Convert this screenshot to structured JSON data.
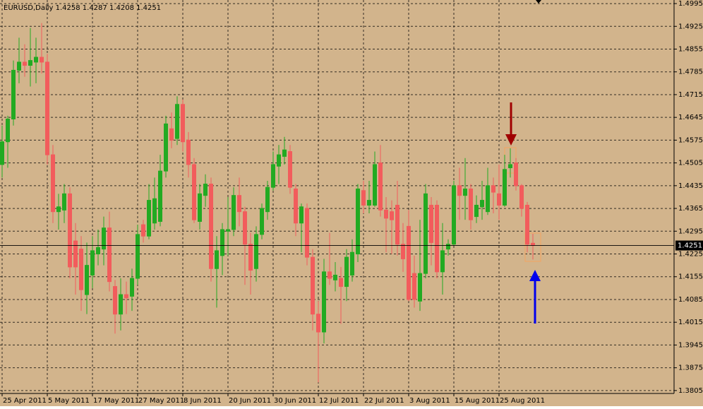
{
  "chart_data": {
    "type": "candlestick",
    "title": "EURUSD,Daily  1.4258 1.4287 1.4208 1.4251",
    "categories": [
      "25 Apr 2011",
      null,
      null,
      null,
      null,
      null,
      null,
      null,
      "5 May 2011",
      null,
      null,
      null,
      null,
      null,
      null,
      null,
      "17 May 2011",
      null,
      null,
      null,
      null,
      null,
      null,
      null,
      "27 May 2011",
      null,
      null,
      null,
      null,
      null,
      null,
      null,
      "8 Jun 2011",
      null,
      null,
      null,
      null,
      null,
      null,
      null,
      "20 Jun 2011",
      null,
      null,
      null,
      null,
      null,
      null,
      null,
      "30 Jun 2011",
      null,
      null,
      null,
      null,
      null,
      null,
      null,
      "12 Jul 2011",
      null,
      null,
      null,
      null,
      null,
      null,
      null,
      "22 Jul 2011",
      null,
      null,
      null,
      null,
      null,
      null,
      null,
      "3 Aug 2011",
      null,
      null,
      null,
      null,
      null,
      null,
      null,
      "15 Aug 2011",
      null,
      null,
      null,
      null,
      null,
      null,
      null,
      "25 Aug 2011",
      null,
      null,
      null,
      null,
      null,
      null
    ],
    "open": [
      1.45,
      1.457,
      1.464,
      1.479,
      1.4815,
      1.4805,
      1.4815,
      1.483,
      1.4815,
      1.453,
      1.4355,
      1.436,
      1.441,
      1.4265,
      1.424,
      1.41,
      1.416,
      1.4225,
      1.424,
      1.4305,
      1.4125,
      1.404,
      1.41,
      1.4095,
      1.415,
      1.4315,
      1.428,
      1.432,
      1.4325,
      1.448,
      1.461,
      1.458,
      1.4685,
      1.4575,
      1.45,
      1.4325,
      1.4405,
      1.444,
      1.418,
      1.422,
      1.4295,
      1.43,
      1.4405,
      1.4355,
      1.4255,
      1.418,
      1.4285,
      1.4355,
      1.443,
      1.4495,
      1.4525,
      1.454,
      1.4425,
      1.432,
      1.4365,
      1.4215,
      1.404,
      1.3985,
      1.417,
      1.4145,
      1.415,
      1.4125,
      1.416,
      1.4225,
      1.442,
      1.4375,
      1.4375,
      1.4505,
      1.436,
      1.4355,
      1.4375,
      1.4255,
      1.431,
      1.4165,
      1.408,
      1.4165,
      1.4375,
      1.4375,
      1.417,
      1.424,
      1.4255,
      1.4435,
      1.4405,
      1.4425,
      1.434,
      1.437,
      1.4355,
      1.4435,
      1.441,
      1.4375,
      1.449,
      1.4505,
      1.4435,
      1.4375,
      1.4258
    ],
    "high": [
      1.462,
      1.465,
      1.482,
      1.489,
      1.487,
      1.492,
      1.489,
      1.4935,
      1.484,
      1.456,
      1.441,
      1.444,
      1.443,
      1.432,
      1.428,
      1.426,
      1.428,
      1.43,
      1.434,
      1.4355,
      1.4145,
      1.415,
      1.414,
      1.418,
      1.4315,
      1.433,
      1.444,
      1.446,
      1.453,
      1.465,
      1.466,
      1.471,
      1.47,
      1.46,
      1.452,
      1.444,
      1.447,
      1.446,
      1.428,
      1.432,
      1.44,
      1.443,
      1.446,
      1.437,
      1.429,
      1.431,
      1.438,
      1.445,
      1.454,
      1.456,
      1.4585,
      1.456,
      1.444,
      1.438,
      1.438,
      1.424,
      1.408,
      1.421,
      1.429,
      1.42,
      1.4185,
      1.424,
      1.427,
      1.444,
      1.445,
      1.445,
      1.454,
      1.456,
      1.44,
      1.439,
      1.445,
      1.432,
      1.436,
      1.422,
      1.433,
      1.444,
      1.44,
      1.439,
      1.432,
      1.427,
      1.445,
      1.449,
      1.452,
      1.444,
      1.4405,
      1.445,
      1.449,
      1.446,
      1.45,
      1.453,
      1.455,
      1.452,
      1.444,
      1.4385,
      1.4287
    ],
    "low": [
      1.446,
      1.449,
      1.462,
      1.475,
      1.477,
      1.474,
      1.475,
      1.478,
      1.45,
      1.432,
      1.43,
      1.432,
      1.415,
      1.41,
      1.405,
      1.404,
      1.412,
      1.419,
      1.419,
      1.411,
      1.398,
      1.399,
      1.404,
      1.405,
      1.413,
      1.426,
      1.427,
      1.43,
      1.431,
      1.446,
      1.455,
      1.456,
      1.454,
      1.446,
      1.432,
      1.43,
      1.437,
      1.414,
      1.406,
      1.416,
      1.422,
      1.428,
      1.431,
      1.413,
      1.41,
      1.414,
      1.427,
      1.433,
      1.442,
      1.444,
      1.45,
      1.441,
      1.428,
      1.423,
      1.419,
      1.399,
      1.383,
      1.395,
      1.413,
      1.411,
      1.401,
      1.408,
      1.414,
      1.42,
      1.435,
      1.435,
      1.437,
      1.434,
      1.423,
      1.4225,
      1.422,
      1.417,
      1.408,
      1.406,
      1.405,
      1.415,
      1.419,
      1.415,
      1.41,
      1.422,
      1.425,
      1.433,
      1.433,
      1.43,
      1.432,
      1.433,
      1.4345,
      1.435,
      1.433,
      1.437,
      1.446,
      1.442,
      1.434,
      1.423,
      1.4208
    ],
    "close": [
      1.457,
      1.464,
      1.479,
      1.4815,
      1.4805,
      1.482,
      1.483,
      1.4815,
      1.453,
      1.4355,
      1.437,
      1.441,
      1.4185,
      1.4185,
      1.4115,
      1.419,
      1.4235,
      1.4245,
      1.4305,
      1.414,
      1.404,
      1.41,
      1.409,
      1.415,
      1.4285,
      1.428,
      1.439,
      1.4395,
      1.448,
      1.4625,
      1.4575,
      1.4685,
      1.457,
      1.45,
      1.433,
      1.441,
      1.444,
      1.418,
      1.4235,
      1.43,
      1.43,
      1.4405,
      1.4355,
      1.4255,
      1.4175,
      1.4285,
      1.4365,
      1.443,
      1.45,
      1.453,
      1.4545,
      1.443,
      1.432,
      1.437,
      1.4215,
      1.404,
      1.3985,
      1.417,
      1.415,
      1.416,
      1.4125,
      1.4215,
      1.423,
      1.4425,
      1.4375,
      1.439,
      1.45,
      1.436,
      1.4335,
      1.433,
      1.4255,
      1.421,
      1.4085,
      1.4085,
      1.4165,
      1.441,
      1.426,
      1.417,
      1.4235,
      1.4255,
      1.4435,
      1.4405,
      1.4425,
      1.433,
      1.4375,
      1.439,
      1.4435,
      1.4415,
      1.4375,
      1.4485,
      1.45,
      1.4435,
      1.4365,
      1.4255,
      1.4251
    ],
    "up_color": "#22aa22",
    "down_color": "#f25c5c",
    "ylim": [
      1.3796,
      1.5006
    ],
    "yticks": [
      1.3805,
      1.3875,
      1.3945,
      1.4015,
      1.4085,
      1.4155,
      1.4225,
      1.4295,
      1.4365,
      1.4435,
      1.4505,
      1.4575,
      1.4645,
      1.4715,
      1.4785,
      1.4855,
      1.4925,
      1.4995
    ],
    "current_price": 1.4251,
    "grid": true
  }
}
